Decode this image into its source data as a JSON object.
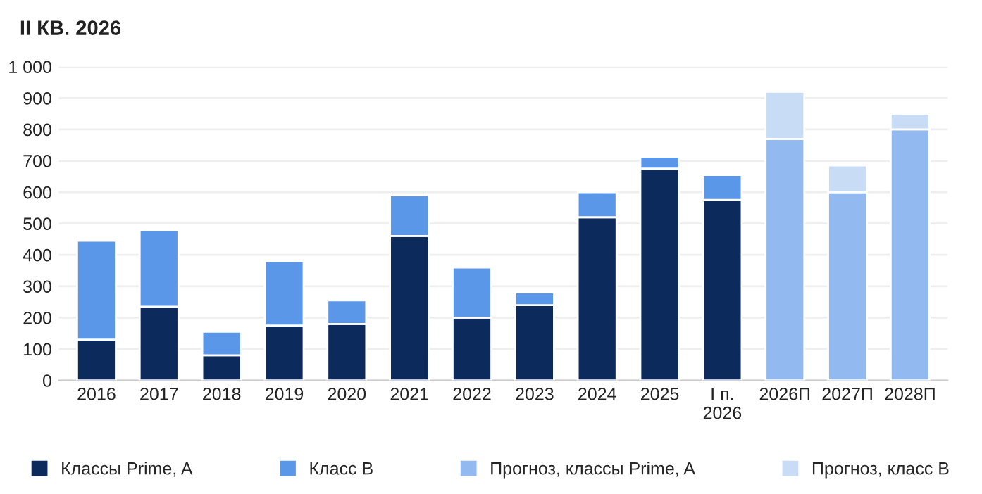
{
  "chart_data": {
    "type": "bar",
    "title": "II КВ. 2026",
    "stacked": true,
    "categories": [
      "2016",
      "2017",
      "2018",
      "2019",
      "2020",
      "2021",
      "2022",
      "2023",
      "2024",
      "2025",
      "I п.\n2026",
      "2026П",
      "2027П",
      "2028П"
    ],
    "series": [
      {
        "name": "Классы Prime, A",
        "color": "#0c2a5b",
        "values": [
          130,
          235,
          80,
          175,
          180,
          460,
          200,
          240,
          520,
          675,
          575,
          null,
          null,
          null
        ]
      },
      {
        "name": "Класс B",
        "color": "#5b97e8",
        "values": [
          315,
          245,
          75,
          205,
          75,
          130,
          160,
          40,
          80,
          38,
          80,
          null,
          null,
          null
        ]
      },
      {
        "name": "Прогноз, классы Prime, A",
        "color": "#93baf0",
        "values": [
          null,
          null,
          null,
          null,
          null,
          null,
          null,
          null,
          null,
          null,
          null,
          770,
          600,
          800
        ]
      },
      {
        "name": "Прогноз, класс B",
        "color": "#c8dcf6",
        "values": [
          null,
          null,
          null,
          null,
          null,
          null,
          null,
          null,
          null,
          null,
          null,
          150,
          85,
          50
        ]
      }
    ],
    "ylim": [
      0,
      1000
    ],
    "yticks": [
      0,
      100,
      200,
      300,
      400,
      500,
      600,
      700,
      800,
      900,
      {
        "value": 1000,
        "label": "1 000"
      }
    ],
    "grid": "y",
    "legend": "bottom"
  }
}
